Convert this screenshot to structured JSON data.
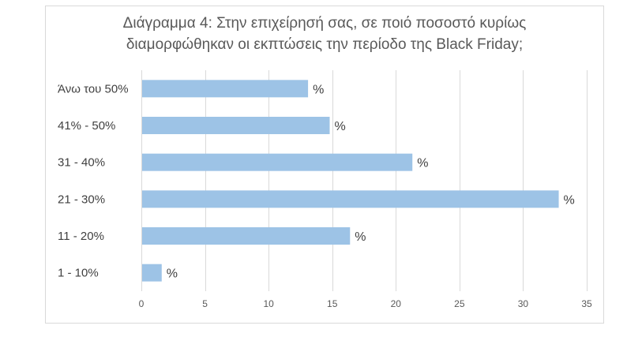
{
  "chart_data": {
    "type": "bar",
    "orientation": "horizontal",
    "title_lines": [
      "Διάγραμμα 4: Στην επιχείρησή σας, σε ποιό ποσοστό κυρίως",
      "διαμορφώθηκαν οι εκπτώσεις την περίοδο της Black Friday;"
    ],
    "categories": [
      "Άνω του 50%",
      "41% - 50%",
      "31 - 40%",
      "21 - 30%",
      "11 - 20%",
      "1 - 10%"
    ],
    "values": [
      13.1,
      14.8,
      21.3,
      32.8,
      16.4,
      1.6
    ],
    "data_labels": [
      "%",
      "%",
      "%",
      "%",
      "%",
      "%"
    ],
    "xlim": [
      0,
      35
    ],
    "xticks": [
      0,
      5,
      10,
      15,
      20,
      25,
      30,
      35
    ],
    "xlabel": "",
    "ylabel": "",
    "grid": "vertical",
    "legend": "none",
    "bar_color": "#9dc3e6",
    "grid_color": "#d9d9d9",
    "text_color": "#595959",
    "label_color": "#404040"
  }
}
